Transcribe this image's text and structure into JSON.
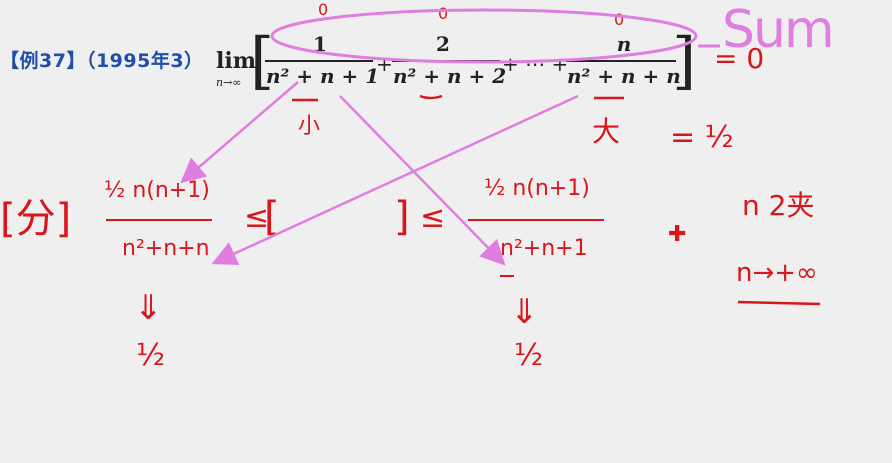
{
  "problem": {
    "tag": "【例37】（1995年3）",
    "lim": "lim",
    "lim_sub": "n→∞",
    "terms": [
      {
        "num": "1",
        "den": "n² + n + 1"
      },
      {
        "num": "2",
        "den": "n² + n + 2"
      },
      {
        "num": "n",
        "den": "n² + n + n"
      }
    ],
    "plus": "+",
    "dots": "+ ⋯ +"
  },
  "annotations": {
    "sum_label": "Sum",
    "eq_zero": "= 0",
    "zero_marks": [
      "0",
      "0",
      "0"
    ],
    "small_label": "小",
    "big_label": "大",
    "eq_half": "= ½",
    "bracket_left": "[分]",
    "leq": "≤",
    "left_bound": {
      "num": "½ n(n+1)",
      "den": "n²+n+n",
      "arrow": "⇓",
      "limit": "½"
    },
    "right_bound": {
      "num": "½ n(n+1)",
      "den": "n²+n+1",
      "arrow": "⇓",
      "limit": "½"
    },
    "note_top": "n 2夹",
    "note_bottom": "n→+∞"
  }
}
